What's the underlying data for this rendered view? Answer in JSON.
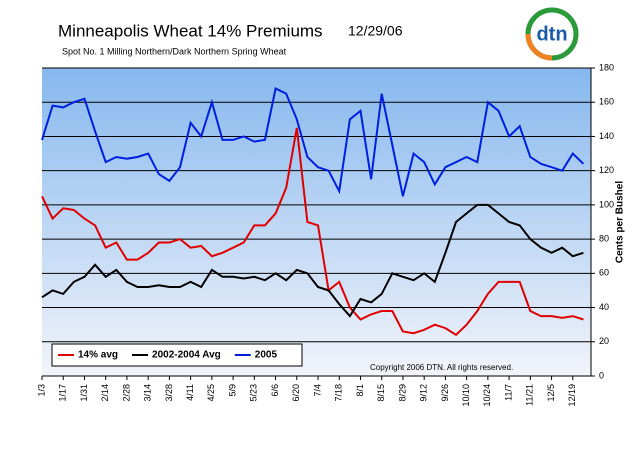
{
  "chart_data": {
    "type": "line",
    "title": "Minneapolis Wheat 14% Premiums",
    "date": "12/29/06",
    "subtitle": "Spot No. 1 Milling Northern/Dark Northern Spring Wheat",
    "y_axis_label": "Cents per Bushel",
    "annotation": "Copyright 2006 DTN. All rights reserved.",
    "logo": "dtn",
    "legend": "lower left",
    "grid": true,
    "x": [
      0,
      7,
      14,
      21,
      28,
      35,
      42,
      49,
      56,
      63,
      70,
      77,
      84,
      91,
      98,
      105,
      112,
      119,
      126,
      133,
      140,
      147,
      154,
      161,
      168,
      175,
      182,
      189,
      196,
      203,
      210,
      217,
      224,
      231,
      238,
      245,
      252,
      259,
      266,
      273,
      280,
      287,
      294,
      301,
      308,
      315,
      322,
      329,
      336,
      343,
      350,
      357
    ],
    "xlim": [
      0,
      362
    ],
    "xticks": [
      {
        "value": 0,
        "label": "1/3"
      },
      {
        "value": 14,
        "label": "1/17"
      },
      {
        "value": 28,
        "label": "1/31"
      },
      {
        "value": 42,
        "label": "2/14"
      },
      {
        "value": 56,
        "label": "2/28"
      },
      {
        "value": 70,
        "label": "3/14"
      },
      {
        "value": 84,
        "label": "3/28"
      },
      {
        "value": 98,
        "label": "4/11"
      },
      {
        "value": 112,
        "label": "4/25"
      },
      {
        "value": 126,
        "label": "5/9"
      },
      {
        "value": 140,
        "label": "5/23"
      },
      {
        "value": 154,
        "label": "6/6"
      },
      {
        "value": 168,
        "label": "6/20"
      },
      {
        "value": 182,
        "label": "7/4"
      },
      {
        "value": 196,
        "label": "7/18"
      },
      {
        "value": 210,
        "label": "8/1"
      },
      {
        "value": 224,
        "label": "8/15"
      },
      {
        "value": 238,
        "label": "8/29"
      },
      {
        "value": 252,
        "label": "9/12"
      },
      {
        "value": 266,
        "label": "9/26"
      },
      {
        "value": 280,
        "label": "10/10"
      },
      {
        "value": 294,
        "label": "10/24"
      },
      {
        "value": 308,
        "label": "11/7"
      },
      {
        "value": 322,
        "label": "11/21"
      },
      {
        "value": 336,
        "label": "12/5"
      },
      {
        "value": 350,
        "label": "12/19"
      }
    ],
    "ylim": [
      0,
      180
    ],
    "yticks": [
      0,
      20,
      40,
      60,
      80,
      100,
      120,
      140,
      160,
      180
    ],
    "series": [
      {
        "name": "14% avg",
        "color": "#e00000",
        "values": [
          105,
          92,
          98,
          97,
          92,
          88,
          75,
          78,
          68,
          68,
          72,
          78,
          78,
          80,
          75,
          76,
          70,
          72,
          75,
          78,
          88,
          88,
          95,
          110,
          145,
          90,
          88,
          50,
          55,
          40,
          33,
          36,
          38,
          38,
          26,
          25,
          27,
          30,
          28,
          24,
          30,
          38,
          48,
          55,
          55,
          55,
          38,
          35,
          35,
          34,
          35,
          33
        ]
      },
      {
        "name": "2002-2004 Avg",
        "color": "#000000",
        "values": [
          46,
          50,
          48,
          55,
          58,
          65,
          58,
          62,
          55,
          52,
          52,
          53,
          52,
          52,
          55,
          52,
          62,
          58,
          58,
          57,
          58,
          56,
          60,
          56,
          62,
          60,
          52,
          50,
          42,
          35,
          45,
          43,
          48,
          60,
          58,
          56,
          60,
          55,
          72,
          90,
          95,
          100,
          100,
          95,
          90,
          88,
          80,
          75,
          72,
          75,
          70,
          72
        ]
      },
      {
        "name": "2005",
        "color": "#0020e0",
        "values": [
          138,
          158,
          157,
          160,
          162,
          143,
          125,
          128,
          127,
          128,
          130,
          118,
          114,
          122,
          148,
          140,
          160,
          138,
          138,
          140,
          137,
          138,
          168,
          165,
          150,
          128,
          122,
          120,
          108,
          150,
          155,
          115,
          165,
          135,
          105,
          130,
          125,
          112,
          122,
          125,
          128,
          125,
          160,
          155,
          140,
          146,
          128,
          124,
          122,
          120,
          130,
          124
        ]
      }
    ]
  }
}
